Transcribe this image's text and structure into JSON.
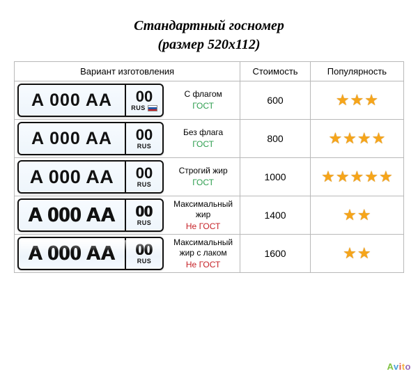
{
  "title_line1": "Стандартный госномер",
  "title_line2": "(размер 520х112)",
  "headers": {
    "variant": "Вариант изготовления",
    "cost": "Стоимость",
    "popularity": "Популярность"
  },
  "plate_text": {
    "main": "A 000 AA",
    "region": "00",
    "rus": "RUS"
  },
  "gost_labels": {
    "ok": "ГОСТ",
    "no": "Не ГОСТ"
  },
  "colors": {
    "border": "#b8b8b8",
    "gost_ok": "#2e9e4f",
    "gost_no": "#c62127",
    "star": "#f6a51a",
    "flag_white": "#ffffff",
    "flag_blue": "#2256a3",
    "flag_red": "#c62127"
  },
  "rows": [
    {
      "name": "С флагом",
      "gost": "ok",
      "cost": "600",
      "stars": 3,
      "flag": true,
      "style": "normal"
    },
    {
      "name": "Без флага",
      "gost": "ok",
      "cost": "800",
      "stars": 4,
      "flag": false,
      "style": "normal"
    },
    {
      "name": "Строгий жир",
      "gost": "ok",
      "cost": "1000",
      "stars": 5,
      "flag": false,
      "style": "bold"
    },
    {
      "name": "Максимальный жир",
      "gost": "no",
      "cost": "1400",
      "stars": 2,
      "flag": false,
      "style": "max"
    },
    {
      "name": "Максимальный жир с лаком",
      "gost": "no",
      "cost": "1600",
      "stars": 2,
      "flag": false,
      "style": "max lacquer"
    }
  ],
  "watermark": "Avito"
}
